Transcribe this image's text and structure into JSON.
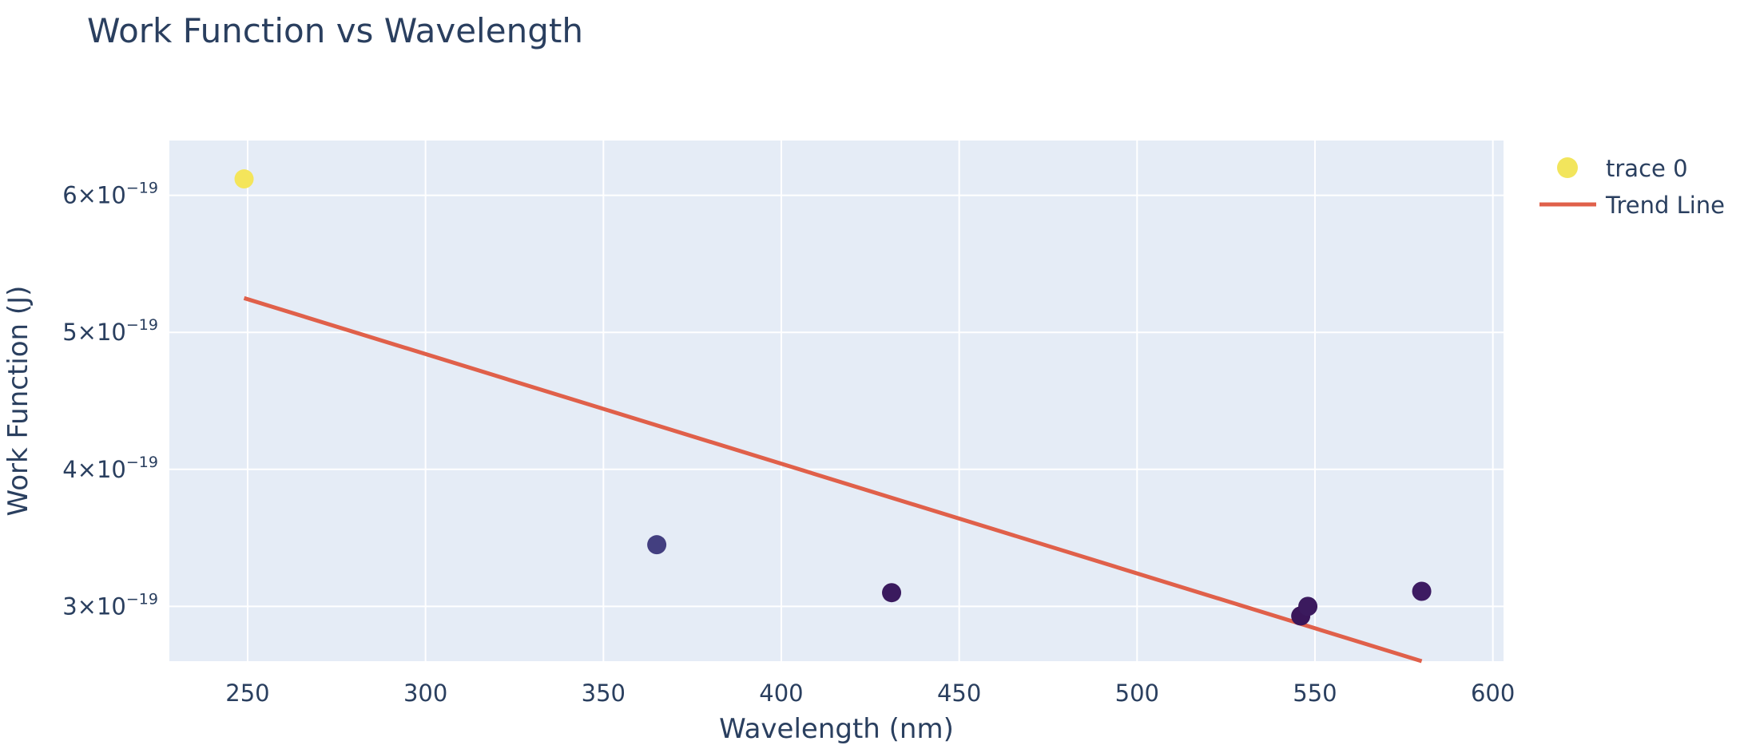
{
  "chart_data": {
    "type": "scatter",
    "title": "Work Function vs Wavelength",
    "xlabel": "Wavelength (nm)",
    "ylabel": "Work Function (J)",
    "xlim": [
      228,
      603
    ],
    "ylim": [
      2.6e-19,
      6.4e-19
    ],
    "x_ticks": [
      250,
      300,
      350,
      400,
      450,
      500,
      550,
      600
    ],
    "y_ticks": [
      {
        "value": 3e-19,
        "mantissa": "3×10",
        "exponent": "−19"
      },
      {
        "value": 4e-19,
        "mantissa": "4×10",
        "exponent": "−19"
      },
      {
        "value": 5e-19,
        "mantissa": "5×10",
        "exponent": "−19"
      },
      {
        "value": 6e-19,
        "mantissa": "6×10",
        "exponent": "−19"
      }
    ],
    "grid": true,
    "legend_position": "top-right, outside plot",
    "plot_background": "#e5ecf6",
    "series": [
      {
        "name": "trace 0",
        "kind": "markers",
        "colorscale": "viridis",
        "legend_color": "#f2e55c",
        "points": [
          {
            "x": 249,
            "y": 6.12e-19,
            "color": "#f4e55b"
          },
          {
            "x": 365,
            "y": 3.45e-19,
            "color": "#433f80"
          },
          {
            "x": 431,
            "y": 3.1e-19,
            "color": "#3a1a5e"
          },
          {
            "x": 546,
            "y": 2.93e-19,
            "color": "#3a165a"
          },
          {
            "x": 548,
            "y": 3e-19,
            "color": "#3b1a5e"
          },
          {
            "x": 580,
            "y": 3.11e-19,
            "color": "#3d1b62"
          }
        ]
      },
      {
        "name": "Trend Line",
        "kind": "line",
        "color": "#e0604a",
        "points": [
          {
            "x": 249,
            "y": 5.25e-19
          },
          {
            "x": 580,
            "y": 2.6e-19
          }
        ]
      }
    ]
  }
}
